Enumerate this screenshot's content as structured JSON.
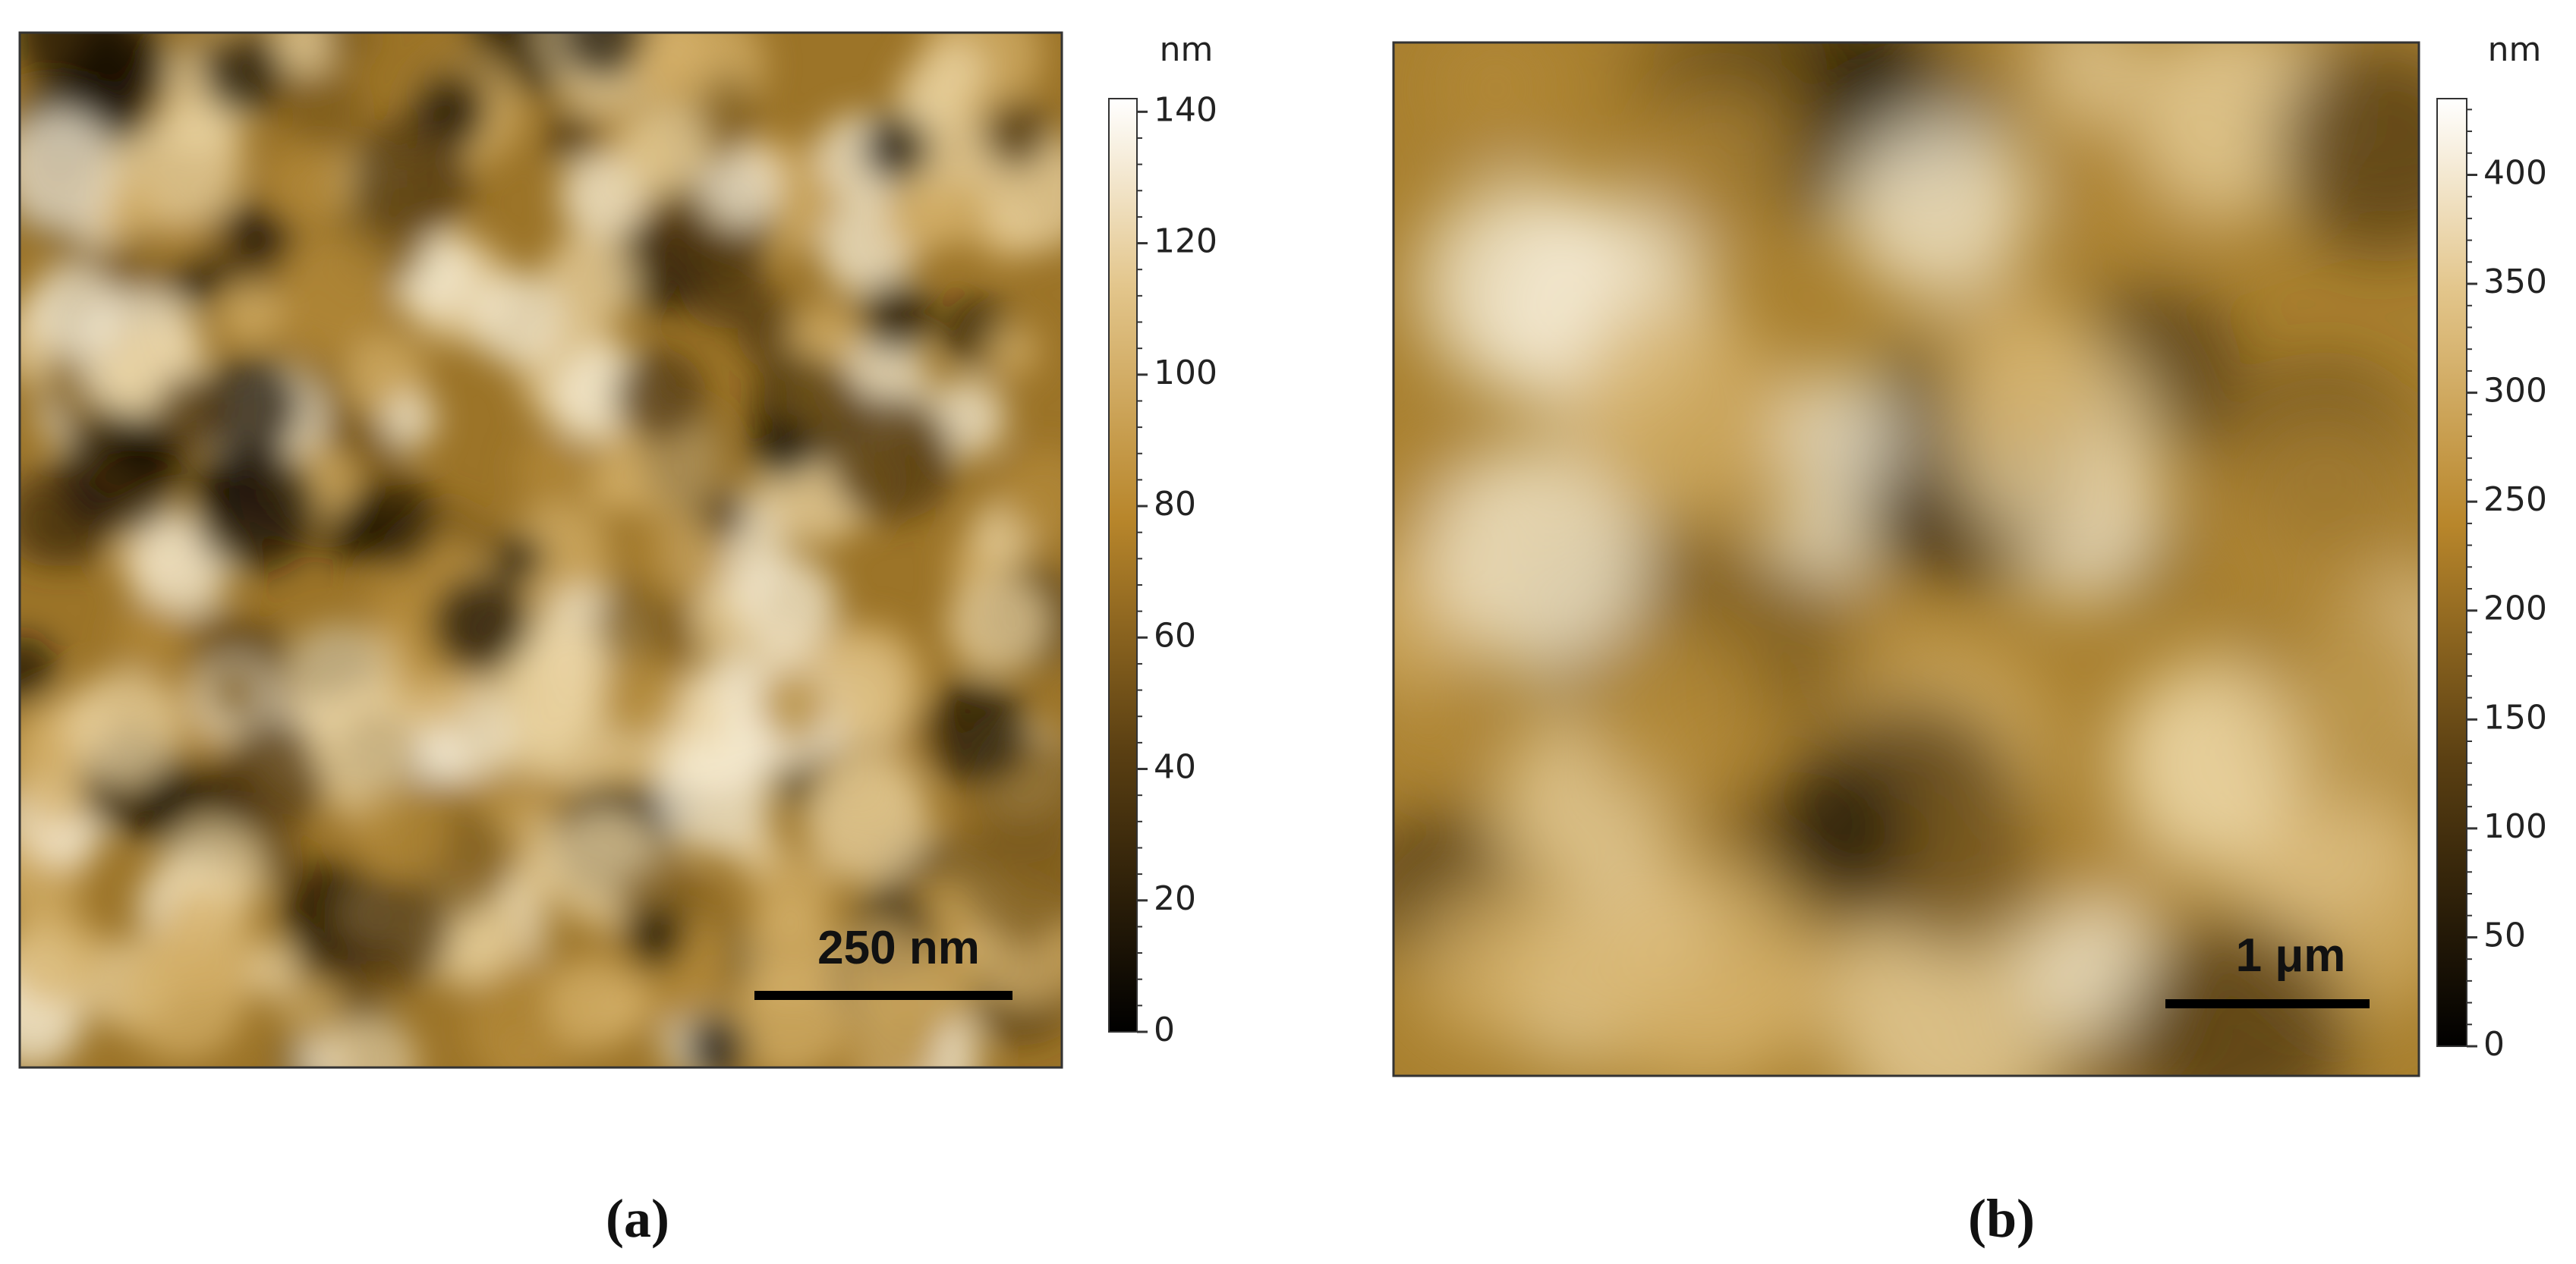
{
  "panels": [
    {
      "caption": "(a)",
      "scale_bar": "250 nm",
      "colorbar": {
        "unit": "nm",
        "range": [
          0,
          142
        ],
        "ticks": [
          0,
          20,
          40,
          60,
          80,
          100,
          120,
          140
        ]
      }
    },
    {
      "caption": "(b)",
      "scale_bar": "1 μm",
      "colorbar": {
        "unit": "nm",
        "range": [
          0,
          435
        ],
        "ticks": [
          0,
          50,
          100,
          150,
          200,
          250,
          300,
          350,
          400
        ]
      }
    }
  ]
}
